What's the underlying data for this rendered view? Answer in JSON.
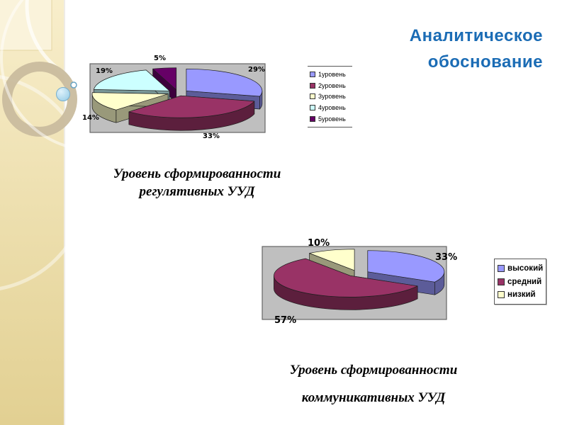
{
  "slide": {
    "title": {
      "line1": "Аналитическое",
      "line2": "обоснование",
      "color": "#1B6CB5"
    },
    "captions": [
      {
        "line1": "Уровень сформированности",
        "line2": "регулятивных УУД"
      },
      {
        "line1": "Уровень сформированности",
        "line2": "коммуникативных УУД"
      }
    ]
  },
  "chart_data": [
    {
      "type": "pie",
      "style": "3d-exploded-pie",
      "title": "Уровень сформированности регулятивных УУД",
      "legend_position": "right",
      "legend_entries": [
        "1уровень",
        "2уровень",
        "3уровень",
        "4уровень",
        "5уровень"
      ],
      "labels": [
        "1уровень",
        "2уровень",
        "3уровень",
        "4уровень",
        "5уровень"
      ],
      "values": [
        29,
        33,
        14,
        19,
        5
      ],
      "data_labels": [
        "29%",
        "33%",
        "14%",
        "19%",
        "5%"
      ],
      "colors": [
        "#9999FF",
        "#993366",
        "#FFFFCC",
        "#CCFFFF",
        "#660066"
      ],
      "plot_background": "#BFBFBF"
    },
    {
      "type": "pie",
      "style": "3d-exploded-pie",
      "title": "Уровень сформированности коммуникативных УУД",
      "legend_position": "right",
      "legend_entries": [
        "высокий",
        "средний",
        "низкий"
      ],
      "labels": [
        "высокий",
        "средний",
        "низкий"
      ],
      "values": [
        33,
        57,
        10
      ],
      "data_labels": [
        "33%",
        "57%",
        "10%"
      ],
      "colors": [
        "#9999FF",
        "#993366",
        "#FFFFCC"
      ],
      "plot_background": "#BFBFBF"
    }
  ]
}
